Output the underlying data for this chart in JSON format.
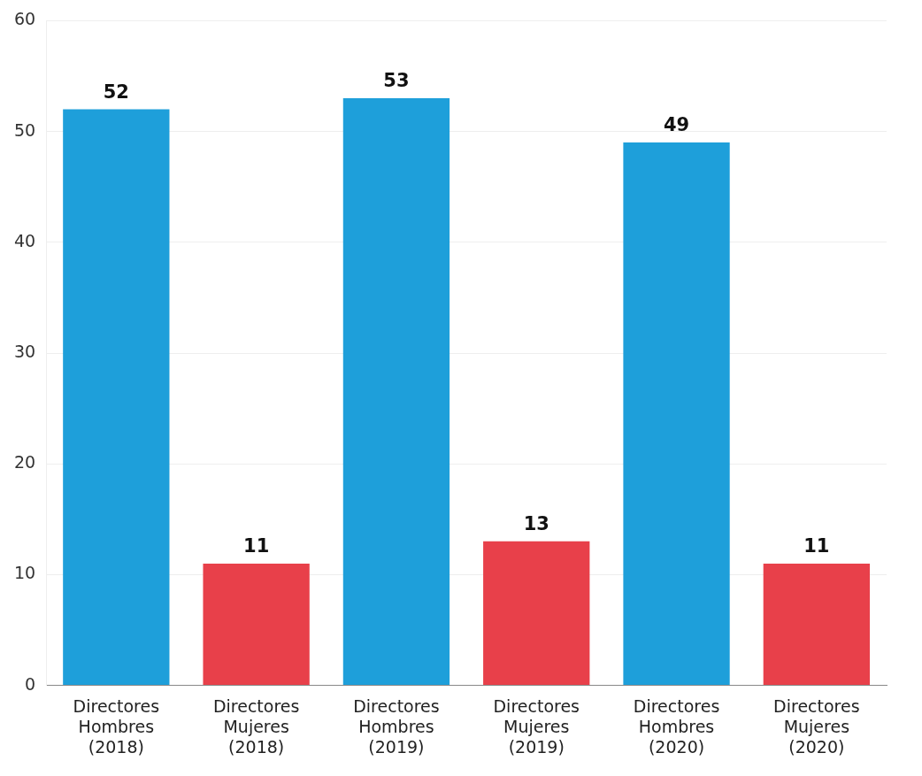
{
  "chart_data": {
    "type": "bar",
    "categories": [
      "Directores Hombres (2018)",
      "Directores Mujeres (2018)",
      "Directores Hombres (2019)",
      "Directores Mujeres (2019)",
      "Directores Hombres (2020)",
      "Directores Mujeres (2020)"
    ],
    "values": [
      52,
      11,
      53,
      13,
      49,
      11
    ],
    "colors": [
      "#1e9fda",
      "#e8404a",
      "#1e9fda",
      "#e8404a",
      "#1e9fda",
      "#e8404a"
    ],
    "ylim": [
      0,
      60
    ],
    "yticks": [
      0,
      10,
      20,
      30,
      40,
      50,
      60
    ],
    "grid": "y",
    "legend": false,
    "data_labels": true
  }
}
